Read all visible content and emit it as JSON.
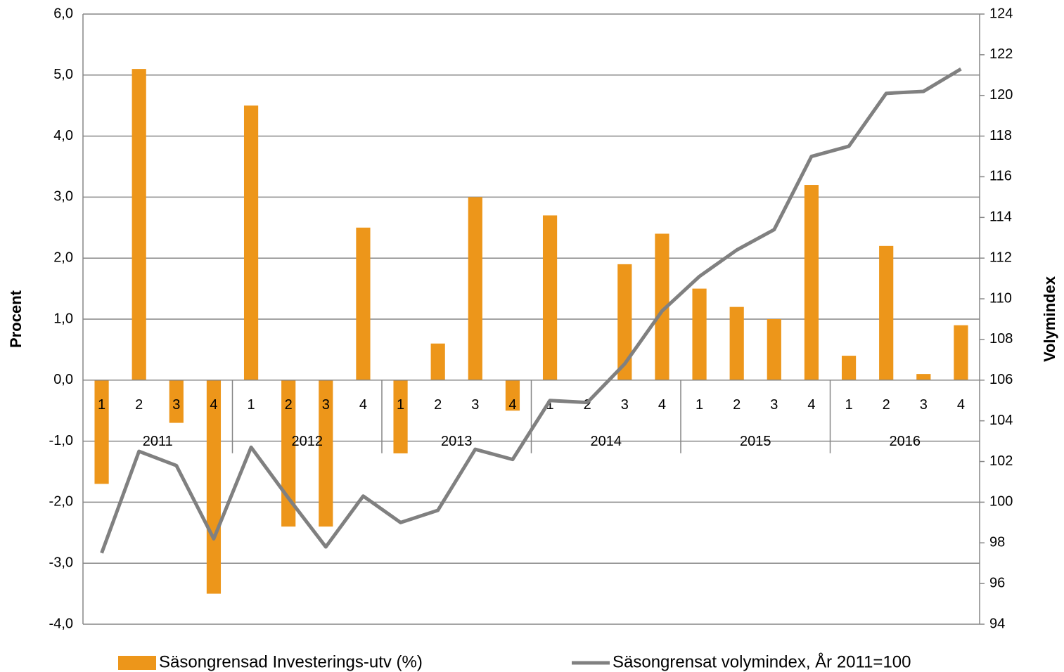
{
  "chart_data": {
    "type": "bar",
    "y_label": "Procent",
    "y2_label": "Volymindex",
    "categories": [
      "1",
      "2",
      "3",
      "4",
      "1",
      "2",
      "3",
      "4",
      "1",
      "2",
      "3",
      "4",
      "1",
      "2",
      "3",
      "4",
      "1",
      "2",
      "3",
      "4",
      "1",
      "2",
      "3",
      "4"
    ],
    "category_groups": [
      "2011",
      "2012",
      "2013",
      "2014",
      "2015",
      "2016"
    ],
    "series": [
      {
        "name": "Säsongrensad Investerings-utv (%)",
        "type": "bar",
        "color": "#ed961a",
        "values": [
          -1.7,
          5.1,
          -0.7,
          -3.5,
          4.5,
          -2.4,
          -2.4,
          2.5,
          -1.2,
          0.6,
          3.0,
          -0.5,
          2.7,
          0,
          1.9,
          2.4,
          1.5,
          1.2,
          1.0,
          3.2,
          0.4,
          2.2,
          0.1,
          0.9
        ]
      },
      {
        "name": "Säsongrensat volymindex, År 2011=100",
        "type": "line",
        "axis": "y2",
        "color": "#808080",
        "values": [
          97.5,
          102.5,
          101.8,
          98.2,
          102.7,
          100.2,
          97.8,
          100.3,
          99.0,
          99.6,
          102.6,
          102.1,
          105.0,
          104.9,
          106.8,
          109.4,
          111.1,
          112.4,
          113.4,
          117.0,
          117.5,
          120.1,
          120.2,
          121.3
        ]
      }
    ],
    "ylim": [
      -4,
      6
    ],
    "yticks": [
      {
        "value": -4,
        "label": "-4,0"
      },
      {
        "value": -3,
        "label": "-3,0"
      },
      {
        "value": -2,
        "label": "-2,0"
      },
      {
        "value": -1,
        "label": "-1,0"
      },
      {
        "value": 0,
        "label": "0,0"
      },
      {
        "value": 1,
        "label": "1,0"
      },
      {
        "value": 2,
        "label": "2,0"
      },
      {
        "value": 3,
        "label": "3,0"
      },
      {
        "value": 4,
        "label": "4,0"
      },
      {
        "value": 5,
        "label": "5,0"
      },
      {
        "value": 6,
        "label": "6,0"
      }
    ],
    "y2lim": [
      94,
      124
    ],
    "y2ticks": [
      94,
      96,
      98,
      100,
      102,
      104,
      106,
      108,
      110,
      112,
      114,
      116,
      118,
      120,
      122,
      124
    ],
    "grid": true,
    "legend": "bottom"
  }
}
